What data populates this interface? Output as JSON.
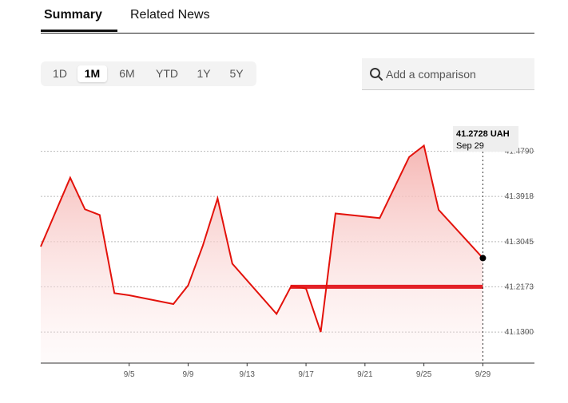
{
  "tabs": [
    {
      "label": "Summary",
      "active": true
    },
    {
      "label": "Related News",
      "active": false
    }
  ],
  "ranges": [
    {
      "label": "1D",
      "active": false
    },
    {
      "label": "1M",
      "active": true
    },
    {
      "label": "6M",
      "active": false
    },
    {
      "label": "YTD",
      "active": false
    },
    {
      "label": "1Y",
      "active": false
    },
    {
      "label": "5Y",
      "active": false
    }
  ],
  "compare": {
    "placeholder": "Add a comparison",
    "icon": "search-icon"
  },
  "colors": {
    "line": "#e3120b",
    "reference": "#e32127",
    "fill_top": "#f5b3b0"
  },
  "chart_data": {
    "type": "area",
    "title": "",
    "xlabel": "",
    "ylabel": "",
    "x": [
      "8/31",
      "9/1",
      "9/2",
      "9/3",
      "9/4",
      "9/5",
      "9/8",
      "9/9",
      "9/10",
      "9/11",
      "9/12",
      "9/15",
      "9/16",
      "9/17",
      "9/18",
      "9/19",
      "9/22",
      "9/24",
      "9/25",
      "9/26",
      "9/29"
    ],
    "values": [
      41.295,
      41.428,
      41.367,
      41.356,
      41.205,
      41.201,
      41.184,
      41.22,
      41.297,
      41.388,
      41.262,
      41.165,
      41.219,
      41.214,
      41.13,
      41.359,
      41.35,
      41.468,
      41.49,
      41.366,
      41.2728
    ],
    "reference_value": 41.2173,
    "xtick_labels": [
      "9/5",
      "9/9",
      "9/13",
      "9/17",
      "9/21",
      "9/25",
      "9/29"
    ],
    "ytick_labels": [
      "41.4790",
      "41.3918",
      "41.3045",
      "41.2173",
      "41.1300"
    ],
    "yticks": [
      41.479,
      41.3918,
      41.3045,
      41.2173,
      41.13
    ],
    "ylim": [
      41.07,
      41.54
    ],
    "grid": true,
    "tooltip": {
      "value": "41.2728 UAH",
      "date": "Sep 29"
    }
  }
}
